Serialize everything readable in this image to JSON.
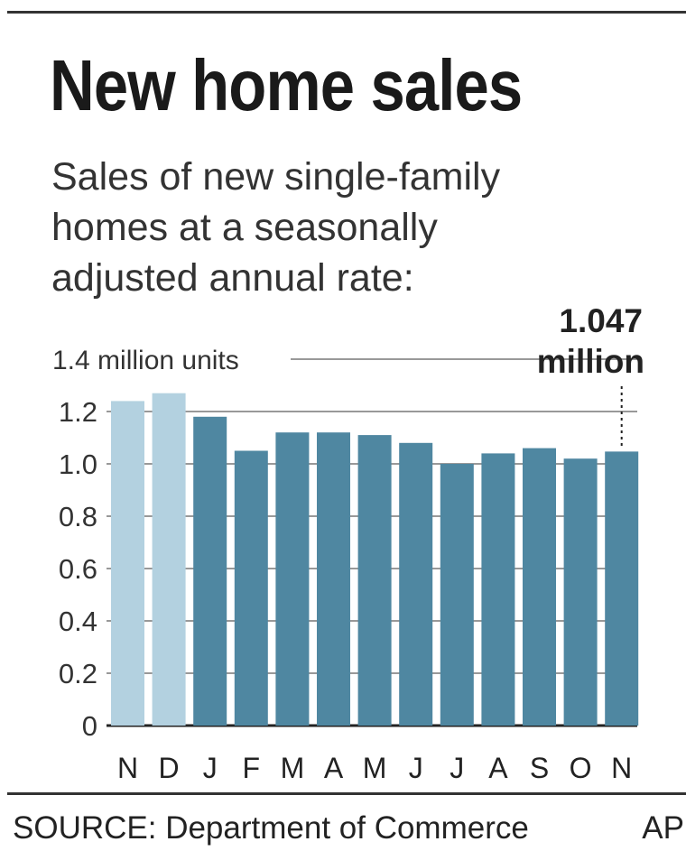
{
  "title": "New home sales",
  "subtitle_lines": [
    "Sales of new single-family",
    "homes at a seasonally",
    "adjusted annual rate:"
  ],
  "source": "SOURCE: Department of Commerce",
  "credit": "AP",
  "colors": {
    "previous_year_bar": "#b3d1e0",
    "current_year_bar": "#4f87a1",
    "gridline": "#999999",
    "axis": "#222222"
  },
  "chart_data": {
    "type": "bar",
    "title": "New home sales",
    "unit_label": "1.4 million units",
    "categories": [
      "N",
      "D",
      "J",
      "F",
      "M",
      "A",
      "M",
      "J",
      "J",
      "A",
      "S",
      "O",
      "N"
    ],
    "values": [
      1.24,
      1.27,
      1.18,
      1.05,
      1.12,
      1.12,
      1.11,
      1.08,
      1.0,
      1.04,
      1.06,
      1.02,
      1.047
    ],
    "bar_shade": [
      "light",
      "light",
      "dark",
      "dark",
      "dark",
      "dark",
      "dark",
      "dark",
      "dark",
      "dark",
      "dark",
      "dark",
      "dark"
    ],
    "yticks": [
      {
        "value": 0,
        "label": "0"
      },
      {
        "value": 0.2,
        "label": "0.2"
      },
      {
        "value": 0.4,
        "label": "0.4"
      },
      {
        "value": 0.6,
        "label": "0.6"
      },
      {
        "value": 0.8,
        "label": "0.8"
      },
      {
        "value": 1.0,
        "label": "1.0"
      },
      {
        "value": 1.2,
        "label": "1.2"
      },
      {
        "value": 1.4,
        "label": ""
      }
    ],
    "ylim": [
      0,
      1.4
    ],
    "grid": true,
    "annotation": {
      "index": 12,
      "value_text": "1.047",
      "unit_text": "million"
    }
  }
}
